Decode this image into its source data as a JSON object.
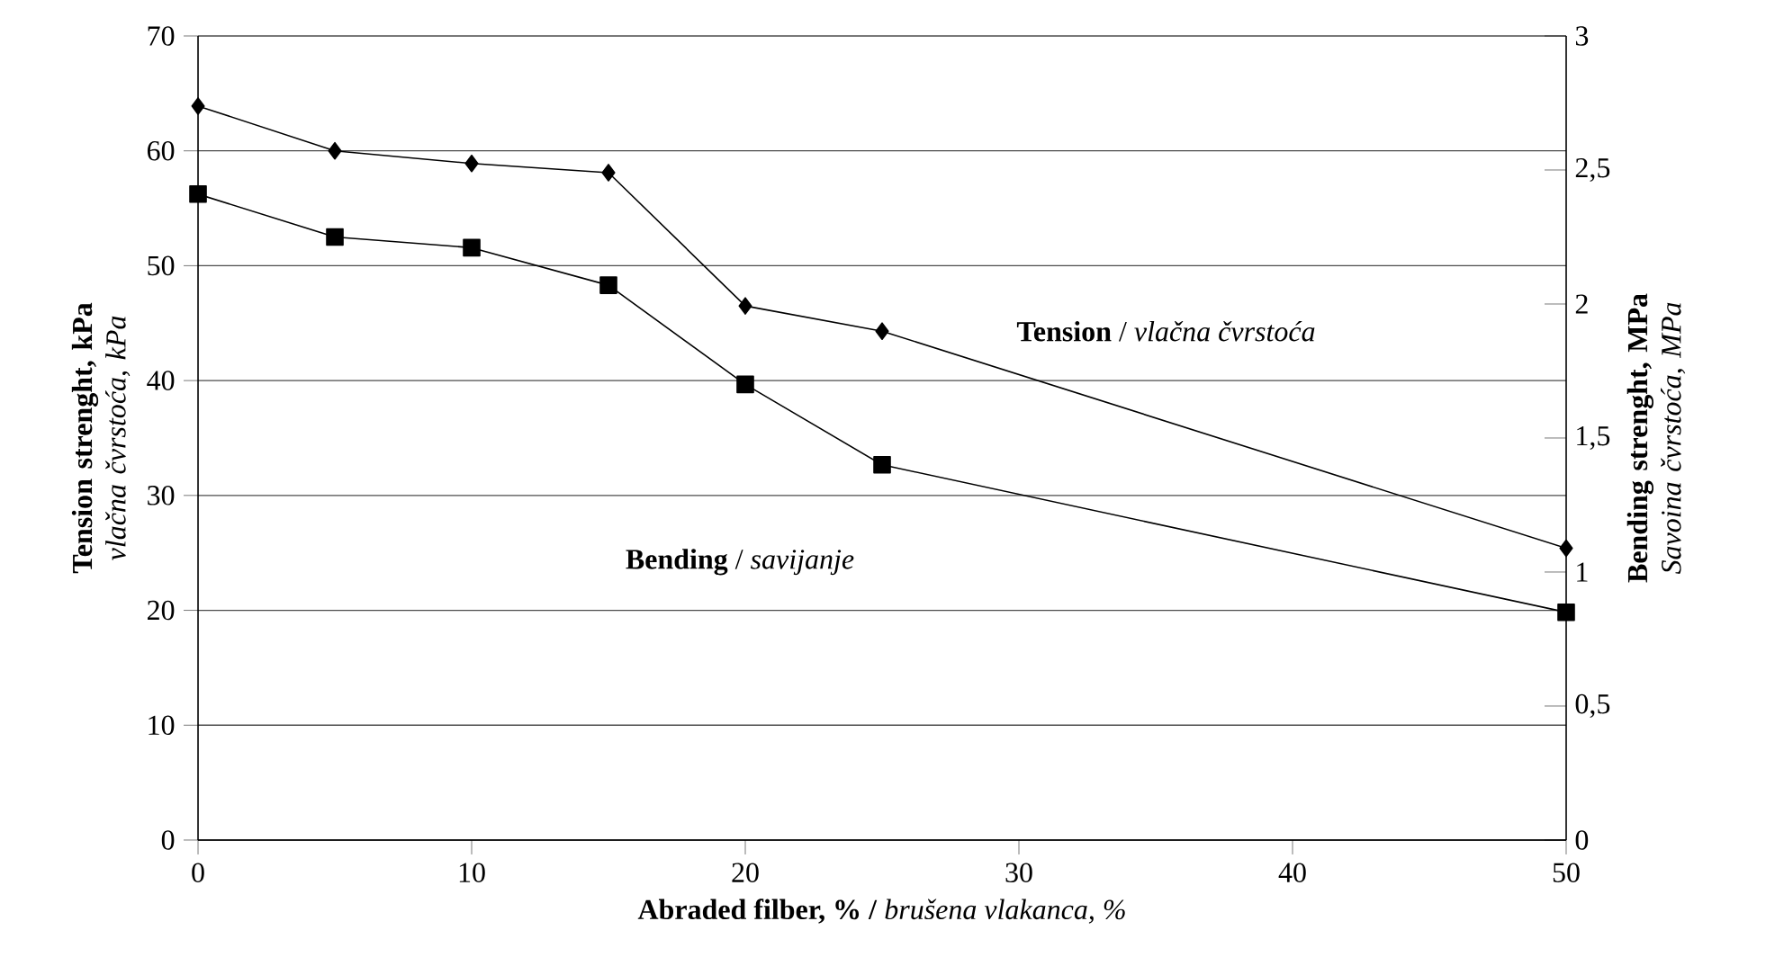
{
  "chart_data": {
    "type": "line",
    "xlabel": "**Abraded filber, % /** *brušena vlakanca, %*",
    "ylabel": "**Tension strenght, kPa** *vlačna čvrstoća, kPa*",
    "y2label": "**Bending strenght, MPa** *Savoina čvrstoća, MPa*",
    "x": [
      0,
      5,
      10,
      15,
      20,
      25,
      50
    ],
    "series": [
      {
        "name": "**Tension** / *vlačna čvrstoća*",
        "color": "#000000",
        "marker": "diamond",
        "values": [
          63.9,
          60.0,
          58.9,
          58.1,
          46.5,
          44.3,
          25.4
        ]
      },
      {
        "name": "**Bending** / *savijanje*",
        "color": "#000000",
        "marker": "square",
        "axis": "y2",
        "values": [
          2.41,
          2.25,
          2.21,
          2.07,
          1.7,
          1.4,
          0.85
        ]
      }
    ],
    "xlim": [
      0,
      50
    ],
    "xticks": [
      0,
      10,
      20,
      30,
      40,
      50
    ],
    "ylim": [
      0,
      70
    ],
    "yticks": [
      0,
      10,
      20,
      30,
      40,
      50,
      60,
      70
    ],
    "y2lim": [
      0,
      3
    ],
    "y2ticks": [
      0,
      {
        "value": 0.5,
        "label": "0,5"
      },
      1,
      {
        "value": 1.5,
        "label": "1,5"
      },
      2,
      {
        "value": 2.5,
        "label": "2,5"
      },
      3
    ],
    "grid": "y",
    "line_style": "solid"
  }
}
